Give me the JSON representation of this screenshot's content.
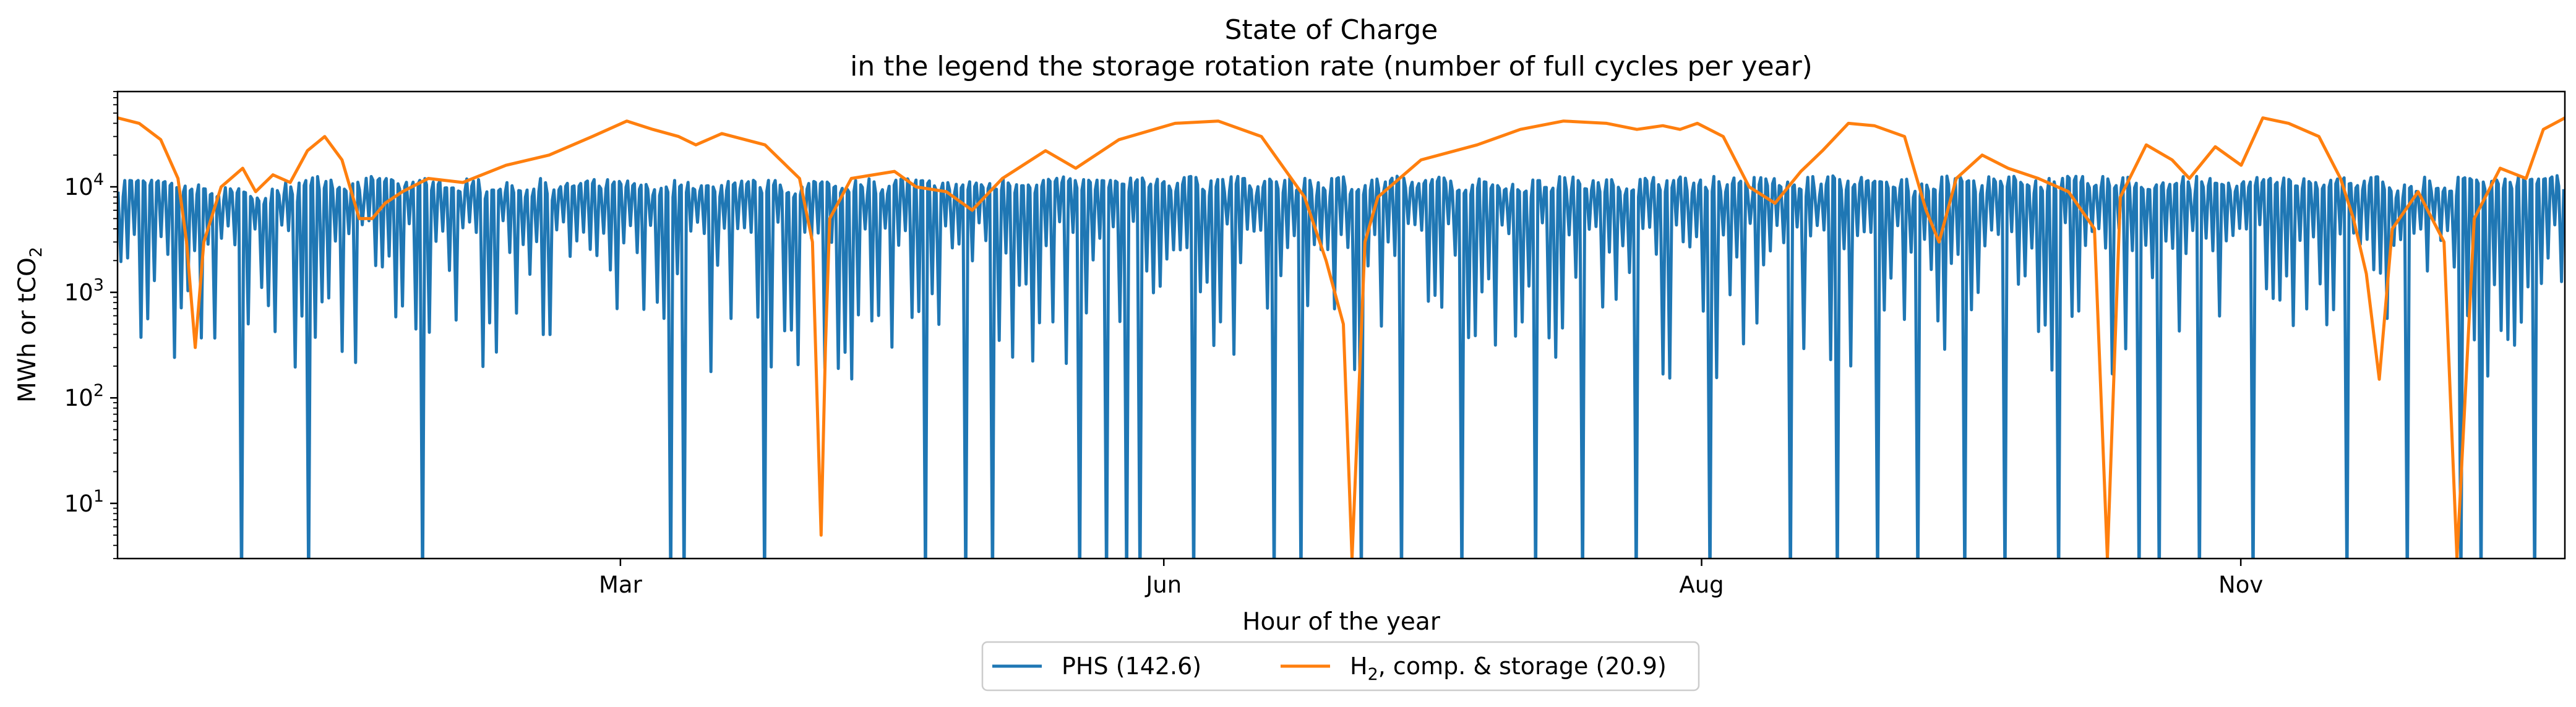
{
  "chart_data": {
    "type": "line",
    "title": "State of Charge",
    "subtitle": "in the legend the storage rotation rate (number of full cycles per year)",
    "xlabel": "Hour of the year",
    "ylabel": "MWh or tCO",
    "ylabel_sub": "2",
    "y_scale": "log",
    "ylim": [
      3,
      80000
    ],
    "xlim": [
      0,
      8760
    ],
    "x_ticks": [
      {
        "label": "Mar",
        "value": 1800
      },
      {
        "label": "Jun",
        "value": 3745
      },
      {
        "label": "Aug",
        "value": 5670
      },
      {
        "label": "Nov",
        "value": 7600
      }
    ],
    "y_ticks": [
      {
        "base": "10",
        "exp": "1",
        "value": 10
      },
      {
        "base": "10",
        "exp": "2",
        "value": 100
      },
      {
        "base": "10",
        "exp": "3",
        "value": 1000
      },
      {
        "base": "10",
        "exp": "4",
        "value": 10000
      }
    ],
    "grid": false,
    "legend_position": "bottom-center",
    "series": [
      {
        "name": "PHS (142.6)",
        "color": "#1f77b4",
        "pattern": "daily-cycling",
        "peak_level": 12000,
        "zero_days": [
          18,
          28,
          45,
          82,
          84,
          96,
          120,
          126,
          130,
          143,
          147,
          150,
          152,
          160,
          172,
          176,
          185,
          191,
          200,
          211,
          218,
          226,
          237,
          249,
          256,
          262,
          268,
          275,
          281,
          289,
          301,
          304,
          310,
          318,
          332,
          341,
          349,
          352,
          360
        ],
        "envelope": [
          [
            0,
            12000
          ],
          [
            20,
            9000
          ],
          [
            28,
            12000
          ],
          [
            90,
            11000
          ],
          [
            150,
            12000
          ],
          [
            250,
            12000
          ],
          [
            365,
            12000
          ]
        ]
      },
      {
        "name": "H",
        "name_sub": "2",
        "name_suffix": ", comp. & storage (20.9)",
        "color": "#ff7f0e",
        "pattern": "seasonal",
        "points": [
          [
            0,
            45000
          ],
          [
            5,
            40000
          ],
          [
            10,
            28000
          ],
          [
            14,
            12000
          ],
          [
            16,
            3000
          ],
          [
            18,
            300
          ],
          [
            20,
            3000
          ],
          [
            24,
            10000
          ],
          [
            29,
            15000
          ],
          [
            32,
            9000
          ],
          [
            36,
            13000
          ],
          [
            40,
            11000
          ],
          [
            44,
            22000
          ],
          [
            48,
            30000
          ],
          [
            52,
            18000
          ],
          [
            56,
            5000
          ],
          [
            59,
            5000
          ],
          [
            62,
            7000
          ],
          [
            66,
            9000
          ],
          [
            72,
            12000
          ],
          [
            80,
            11000
          ],
          [
            90,
            16000
          ],
          [
            100,
            20000
          ],
          [
            110,
            30000
          ],
          [
            118,
            42000
          ],
          [
            124,
            35000
          ],
          [
            130,
            30000
          ],
          [
            134,
            25000
          ],
          [
            140,
            32000
          ],
          [
            150,
            25000
          ],
          [
            158,
            12000
          ],
          [
            161,
            3000
          ],
          [
            163,
            5
          ],
          [
            164,
            300
          ],
          [
            165,
            5000
          ],
          [
            170,
            12000
          ],
          [
            180,
            14000
          ],
          [
            185,
            10000
          ],
          [
            192,
            9000
          ],
          [
            198,
            6000
          ],
          [
            205,
            12000
          ],
          [
            215,
            22000
          ],
          [
            222,
            15000
          ],
          [
            232,
            28000
          ],
          [
            245,
            40000
          ],
          [
            255,
            42000
          ],
          [
            265,
            30000
          ],
          [
            275,
            8000
          ],
          [
            280,
            2000
          ],
          [
            284,
            500
          ],
          [
            286,
            3
          ],
          [
            289,
            3000
          ],
          [
            292,
            8000
          ],
          [
            302,
            18000
          ],
          [
            315,
            25000
          ],
          [
            325,
            35000
          ],
          [
            335,
            42000
          ],
          [
            345,
            40000
          ],
          [
            352,
            35000
          ],
          [
            358,
            38000
          ],
          [
            362,
            35000
          ],
          [
            366,
            40000
          ],
          [
            372,
            30000
          ],
          [
            378,
            10000
          ],
          [
            384,
            7000
          ],
          [
            390,
            14000
          ],
          [
            395,
            22000
          ],
          [
            401,
            40000
          ],
          [
            407,
            38000
          ],
          [
            414,
            30000
          ],
          [
            419,
            6000
          ],
          [
            422,
            3000
          ],
          [
            426,
            12000
          ],
          [
            432,
            20000
          ],
          [
            438,
            15000
          ],
          [
            445,
            12000
          ],
          [
            452,
            9000
          ],
          [
            458,
            4000
          ],
          [
            461,
            3
          ],
          [
            464,
            8000
          ],
          [
            470,
            25000
          ],
          [
            476,
            18000
          ],
          [
            480,
            12000
          ],
          [
            486,
            24000
          ],
          [
            492,
            16000
          ],
          [
            497,
            45000
          ],
          [
            503,
            40000
          ],
          [
            510,
            30000
          ],
          [
            515,
            12000
          ],
          [
            518,
            5000
          ],
          [
            521,
            1500
          ],
          [
            524,
            150
          ],
          [
            527,
            4000
          ],
          [
            533,
            9000
          ],
          [
            539,
            3000
          ],
          [
            542,
            3
          ],
          [
            546,
            5000
          ],
          [
            552,
            15000
          ],
          [
            558,
            12000
          ],
          [
            562,
            35000
          ],
          [
            567,
            45000
          ]
        ]
      }
    ]
  }
}
